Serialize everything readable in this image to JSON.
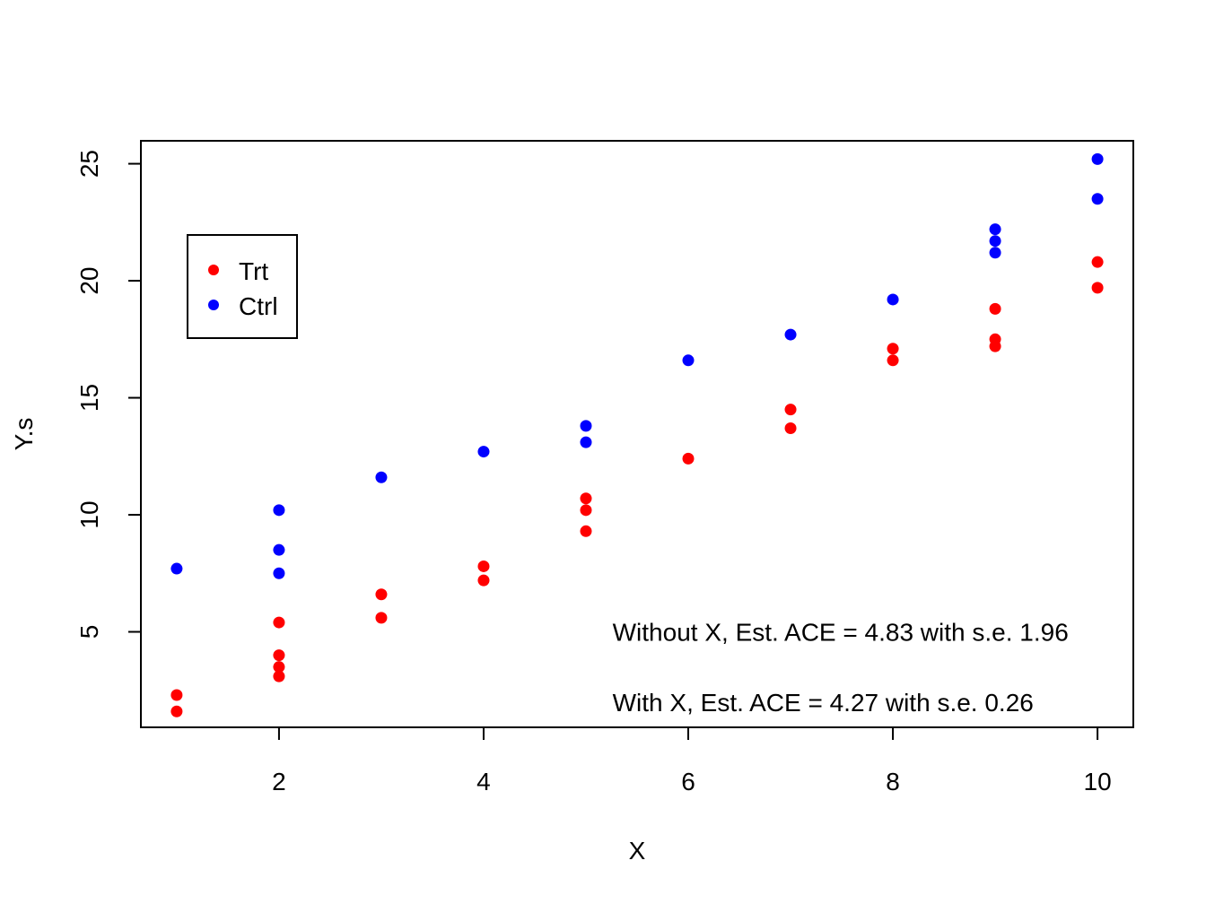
{
  "chart_data": {
    "type": "scatter",
    "title": "",
    "xlabel": "X",
    "ylabel": "Y.s",
    "xlim": [
      0.65,
      10.35
    ],
    "ylim": [
      0.92,
      25.98
    ],
    "xticks": [
      2,
      4,
      6,
      8,
      10
    ],
    "yticks": [
      5,
      10,
      15,
      20,
      25
    ],
    "grid": false,
    "legend": {
      "position": "top-left"
    },
    "series": [
      {
        "name": "Trt",
        "color": "#ff0000",
        "points": [
          [
            1,
            2.3
          ],
          [
            1,
            1.6
          ],
          [
            2,
            5.4
          ],
          [
            2,
            4.0
          ],
          [
            2,
            3.5
          ],
          [
            2,
            3.1
          ],
          [
            3,
            6.6
          ],
          [
            3,
            5.6
          ],
          [
            4,
            7.8
          ],
          [
            4,
            7.2
          ],
          [
            5,
            10.7
          ],
          [
            5,
            10.2
          ],
          [
            5,
            9.3
          ],
          [
            6,
            12.4
          ],
          [
            7,
            14.5
          ],
          [
            7,
            13.7
          ],
          [
            8,
            17.1
          ],
          [
            8,
            16.6
          ],
          [
            9,
            18.8
          ],
          [
            9,
            17.5
          ],
          [
            9,
            17.2
          ],
          [
            10,
            20.8
          ],
          [
            10,
            19.7
          ]
        ]
      },
      {
        "name": "Ctrl",
        "color": "#0000ff",
        "points": [
          [
            1,
            7.7
          ],
          [
            2,
            10.2
          ],
          [
            2,
            8.5
          ],
          [
            2,
            7.5
          ],
          [
            3,
            11.6
          ],
          [
            4,
            12.7
          ],
          [
            5,
            13.8
          ],
          [
            5,
            13.1
          ],
          [
            6,
            16.6
          ],
          [
            7,
            17.7
          ],
          [
            8,
            19.2
          ],
          [
            9,
            22.2
          ],
          [
            9,
            21.7
          ],
          [
            9,
            21.2
          ],
          [
            10,
            25.2
          ],
          [
            10,
            23.5
          ]
        ]
      }
    ],
    "annotations": [
      {
        "text": "Without X, Est. ACE =  4.83 with s.e. 1.96",
        "x": 5.26,
        "y": 5
      },
      {
        "text": "With X,  Est. ACE =  4.27 with s.e. 0.26",
        "x": 5.26,
        "y": 2
      }
    ]
  }
}
